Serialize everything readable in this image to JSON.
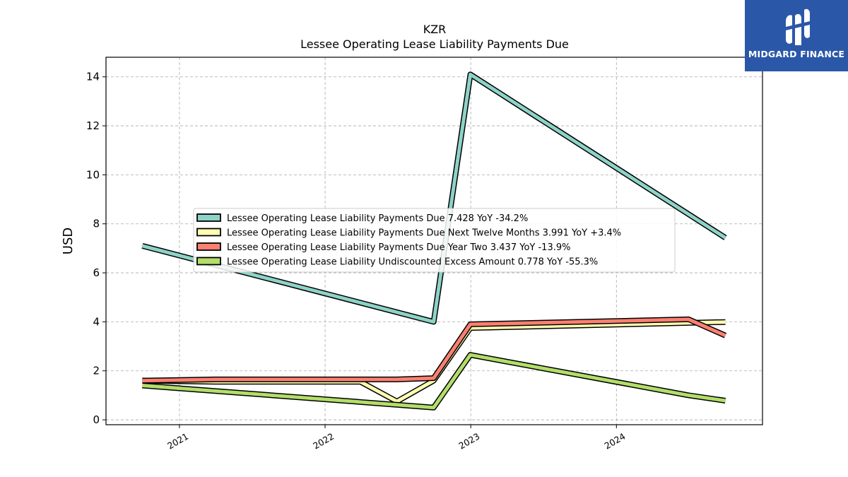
{
  "brand": {
    "name": "MIDGARD FINANCE",
    "background": "#2b57a8"
  },
  "chart_data": {
    "type": "line",
    "title": "KZR",
    "subtitle": "Lessee Operating Lease Liability Payments Due",
    "xlabel": "",
    "ylabel": "USD",
    "x_axis": {
      "type": "date",
      "range": [
        "2020-07-01",
        "2025-01-01"
      ],
      "ticks": [
        "2021",
        "2022",
        "2023",
        "2024"
      ]
    },
    "y_axis": {
      "range": [
        -0.2,
        14.8
      ],
      "ticks": [
        0,
        2,
        4,
        6,
        8,
        10,
        12,
        14
      ]
    },
    "grid": true,
    "legend": {
      "placement": "center-left"
    },
    "series": [
      {
        "name": "Lessee Operating Lease Liability Payments Due",
        "legend_label": "Lessee Operating Lease Liability Payments Due  7.428 YoY -34.2%",
        "color": "#8dd3c7",
        "points": [
          [
            "2020-09-30",
            7.1
          ],
          [
            "2022-09-30",
            4.0
          ],
          [
            "2022-12-31",
            14.1
          ],
          [
            "2024-09-30",
            7.43
          ]
        ]
      },
      {
        "name": "Lessee Operating Lease Liability Payments Due Next Twelve Months",
        "legend_label": "Lessee Operating Lease Liability Payments Due Next Twelve Months  3.991 YoY +3.4%",
        "color": "#ffffb3",
        "points": [
          [
            "2020-09-30",
            1.6
          ],
          [
            "2021-03-31",
            1.55
          ],
          [
            "2022-03-31",
            1.55
          ],
          [
            "2022-06-30",
            0.75
          ],
          [
            "2022-09-30",
            1.6
          ],
          [
            "2022-12-31",
            3.75
          ],
          [
            "2024-09-30",
            3.99
          ]
        ]
      },
      {
        "name": "Lessee Operating Lease Liability Payments Due Year Two",
        "legend_label": "Lessee Operating Lease Liability Payments Due Year Two  3.437 YoY -13.9%",
        "color": "#fb8072",
        "points": [
          [
            "2020-09-30",
            1.6
          ],
          [
            "2021-03-31",
            1.65
          ],
          [
            "2022-06-30",
            1.65
          ],
          [
            "2022-09-30",
            1.7
          ],
          [
            "2022-12-31",
            3.9
          ],
          [
            "2024-06-30",
            4.1
          ],
          [
            "2024-09-30",
            3.44
          ]
        ]
      },
      {
        "name": "Lessee Operating Lease Liability Undiscounted Excess Amount",
        "legend_label": "Lessee Operating Lease Liability Undiscounted Excess Amount  0.778 YoY -55.3%",
        "color": "#b3de69",
        "points": [
          [
            "2020-09-30",
            1.4
          ],
          [
            "2022-09-30",
            0.5
          ],
          [
            "2022-12-31",
            2.65
          ],
          [
            "2024-06-30",
            1.0
          ],
          [
            "2024-09-30",
            0.78
          ]
        ]
      }
    ]
  }
}
